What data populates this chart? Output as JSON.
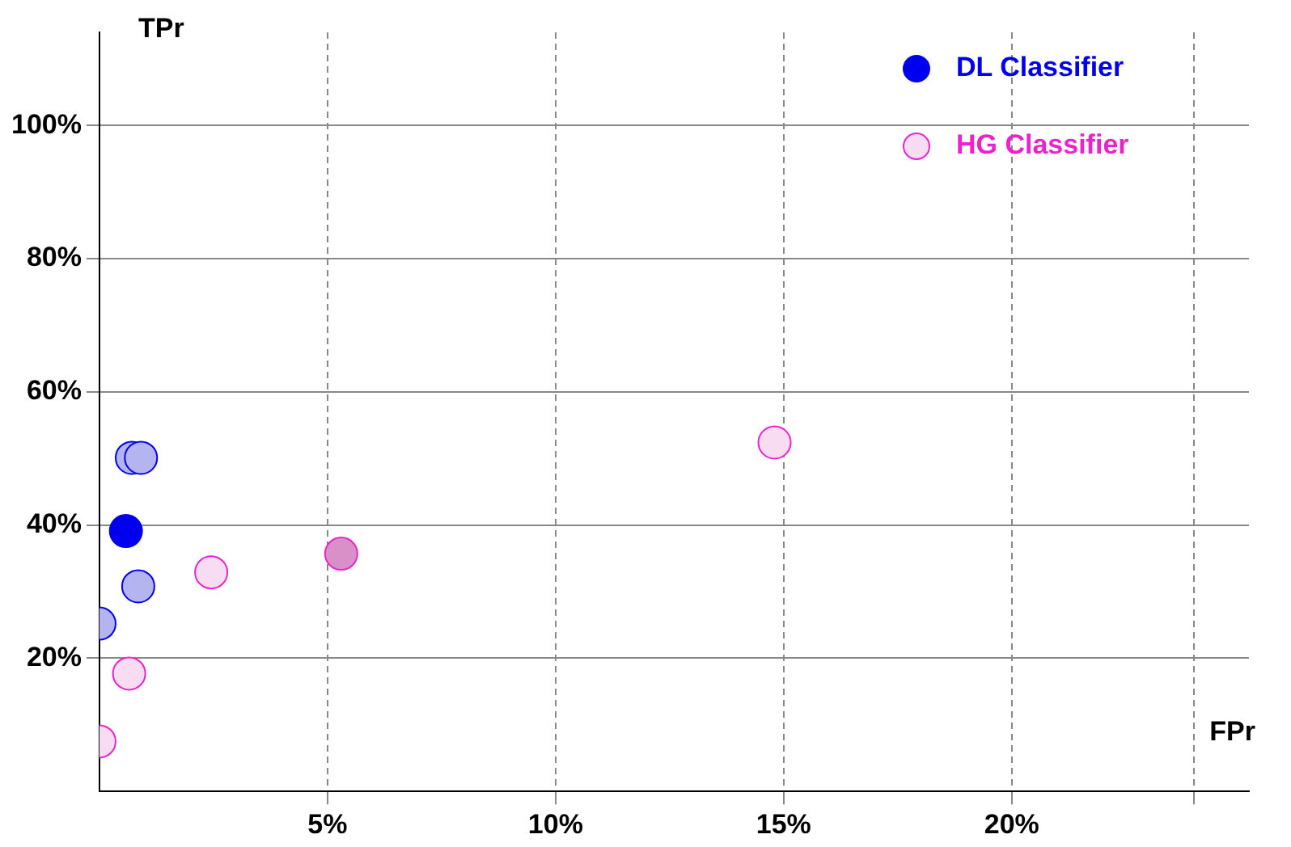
{
  "chart_data": {
    "type": "scatter",
    "xlabel": "FPr",
    "ylabel": "TPr",
    "series": [
      {
        "name": "DL Classifier",
        "color": "#0000ee",
        "x": [
          0.58,
          0.71,
          0.91,
          0.85,
          0
        ],
        "values": [
          39.1,
          50.1,
          50.1,
          30.8,
          25.2
        ],
        "colors": [
          "#0000ee",
          "#b4b4f0",
          "#b4b4f0",
          "#b4b4f0",
          "#b4b4f0"
        ]
      },
      {
        "name": "HG Classifier",
        "color": "#ee22cc",
        "x": [
          0,
          0.65,
          2.45,
          5.3,
          14.8
        ],
        "values": [
          7.5,
          17.7,
          32.9,
          35.7,
          52.4
        ],
        "colors": [
          "#f8dcf2",
          "#f8dcf2",
          "#f8dcf2",
          "#d890c8",
          "#f8dcf2"
        ]
      }
    ],
    "xlim": [
      0,
      25.2
    ],
    "ylim": [
      0,
      114
    ],
    "xticks": [
      {
        "value": 5,
        "label": "5%"
      },
      {
        "value": 10,
        "label": "10%"
      },
      {
        "value": 15,
        "label": "15%"
      },
      {
        "value": 20,
        "label": "20%"
      },
      {
        "value": 24,
        "label": null
      }
    ],
    "yticks": [
      {
        "value": 20,
        "label": "20%"
      },
      {
        "value": 40,
        "label": "40%"
      },
      {
        "value": 60,
        "label": "60%"
      },
      {
        "value": 80,
        "label": "80%"
      },
      {
        "value": 100,
        "label": "100%"
      }
    ],
    "grid": true,
    "legend": "top right",
    "marker": "circle"
  }
}
